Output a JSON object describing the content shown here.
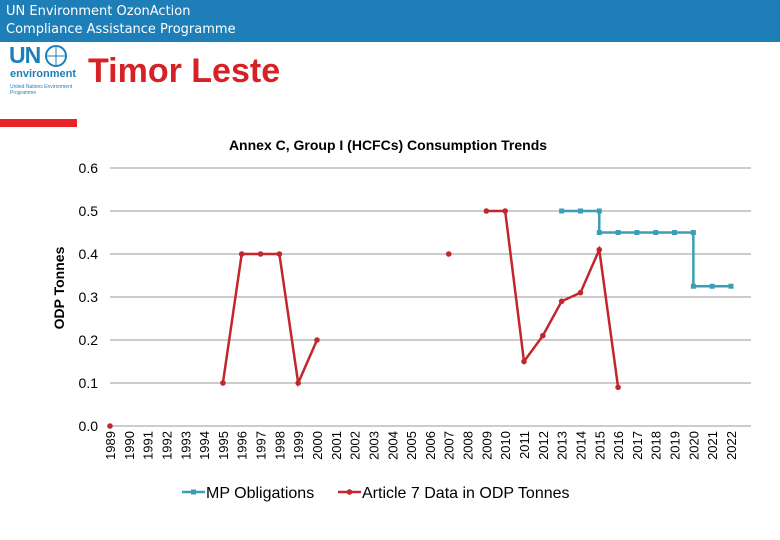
{
  "header": {
    "line1": "UN Environment OzonAction",
    "line2": "Compliance Assistance Programme"
  },
  "logo": {
    "un": "UN",
    "environment": "environment",
    "subtitle": "United Nations Environment Programme"
  },
  "page_title": "Timor Leste",
  "colors": {
    "header_bg": "#1e7fb8",
    "title": "#d62126",
    "mp_series": "#3a9fb6",
    "article7_series": "#c1272d"
  },
  "chart_data": {
    "type": "line",
    "title": "Annex C, Group I (HCFCs) Consumption Trends",
    "xlabel": "",
    "ylabel": "ODP Tonnes",
    "ylim": [
      0,
      0.6
    ],
    "yticks": [
      "0.0",
      "0.1",
      "0.2",
      "0.3",
      "0.4",
      "0.5",
      "0.6"
    ],
    "grid": true,
    "legend_position": "bottom",
    "categories": [
      "1989",
      "1990",
      "1991",
      "1992",
      "1993",
      "1994",
      "1995",
      "1996",
      "1997",
      "1998",
      "1999",
      "2000",
      "2001",
      "2002",
      "2003",
      "2004",
      "2005",
      "2006",
      "2007",
      "2008",
      "2009",
      "2010",
      "2011",
      "2012",
      "2013",
      "2014",
      "2015",
      "2016",
      "2017",
      "2018",
      "2019",
      "2020",
      "2021",
      "2022"
    ],
    "series": [
      {
        "name": "MP Obligations",
        "step": true,
        "points": [
          [
            2013,
            0.5
          ],
          [
            2014,
            0.5
          ],
          [
            2015,
            0.5
          ],
          [
            2015,
            0.45
          ],
          [
            2016,
            0.45
          ],
          [
            2017,
            0.45
          ],
          [
            2018,
            0.45
          ],
          [
            2019,
            0.45
          ],
          [
            2020,
            0.45
          ],
          [
            2020,
            0.325
          ],
          [
            2021,
            0.325
          ],
          [
            2022,
            0.325
          ]
        ]
      },
      {
        "name": "Article 7 Data in ODP Tonnes",
        "values": [
          0,
          null,
          null,
          null,
          null,
          null,
          0.1,
          0.4,
          0.4,
          0.4,
          0.1,
          0.2,
          null,
          null,
          null,
          null,
          null,
          null,
          0.4,
          null,
          0.5,
          0.5,
          0.15,
          0.21,
          0.29,
          0.31,
          0.41,
          0.09,
          null,
          null,
          null,
          null,
          null,
          null
        ]
      }
    ]
  }
}
